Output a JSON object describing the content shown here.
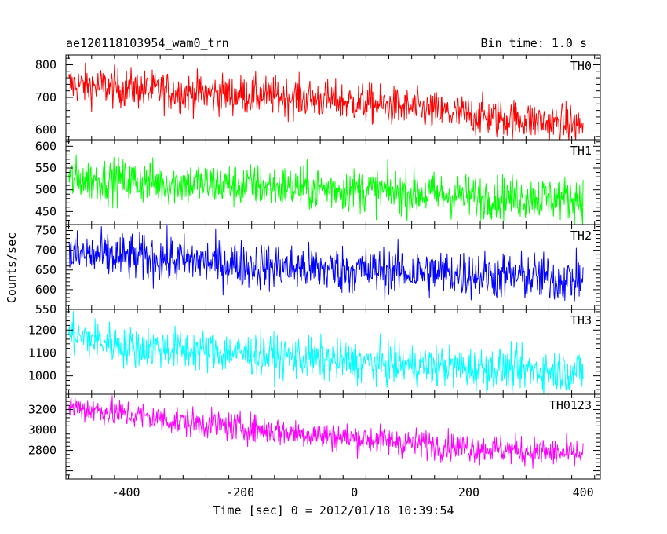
{
  "header": {
    "title": "ae120118103954_wam0_trn",
    "bin_time": "Bin time: 1.0 s"
  },
  "chart_data": {
    "type": "line",
    "title": "ae120118103954_wam0_trn",
    "subtitle": "Bin time: 1.0 s",
    "xlabel": "Time [sec] 0 = 2012/01/18 10:39:54",
    "ylabel": "Counts/sec",
    "xlim": [
      -505,
      430
    ],
    "x_ticks": [
      -400,
      -200,
      0,
      200,
      400
    ],
    "x_range_data": [
      -500,
      400
    ],
    "bin_time_s": 1.0,
    "panels": [
      {
        "name": "TH0",
        "color": "#ff0000",
        "ylim": [
          570,
          830
        ],
        "ticks": [
          600,
          700,
          800
        ],
        "trend_points": [
          [
            -500,
            740
          ],
          [
            -300,
            715
          ],
          [
            -100,
            700
          ],
          [
            0,
            685
          ],
          [
            100,
            665
          ],
          [
            200,
            645
          ],
          [
            300,
            630
          ],
          [
            400,
            615
          ]
        ],
        "noise_amplitude": 30
      },
      {
        "name": "TH1",
        "color": "#00ff00",
        "ylim": [
          420,
          615
        ],
        "ticks": [
          450,
          500,
          550,
          600
        ],
        "trend_points": [
          [
            -500,
            525
          ],
          [
            -300,
            515
          ],
          [
            -100,
            505
          ],
          [
            0,
            500
          ],
          [
            200,
            485
          ],
          [
            400,
            480
          ]
        ],
        "noise_amplitude": 25
      },
      {
        "name": "TH2",
        "color": "#0000ff",
        "ylim": [
          550,
          765
        ],
        "ticks": [
          550,
          600,
          650,
          700,
          750
        ],
        "trend_points": [
          [
            -500,
            690
          ],
          [
            -300,
            675
          ],
          [
            -100,
            655
          ],
          [
            0,
            650
          ],
          [
            200,
            640
          ],
          [
            400,
            625
          ]
        ],
        "noise_amplitude": 30
      },
      {
        "name": "TH3",
        "color": "#00ffff",
        "ylim": [
          920,
          1290
        ],
        "ticks": [
          1000,
          1100,
          1200
        ],
        "trend_points": [
          [
            -500,
            1180
          ],
          [
            -400,
            1130
          ],
          [
            -200,
            1100
          ],
          [
            0,
            1060
          ],
          [
            200,
            1035
          ],
          [
            400,
            1020
          ]
        ],
        "noise_amplitude": 45
      },
      {
        "name": "TH0123",
        "color": "#ff00ff",
        "ylim": [
          2520,
          3350
        ],
        "ticks": [
          2800,
          3000,
          3200
        ],
        "trend_points": [
          [
            -500,
            3230
          ],
          [
            -300,
            3080
          ],
          [
            -100,
            2970
          ],
          [
            0,
            2920
          ],
          [
            200,
            2830
          ],
          [
            400,
            2760
          ]
        ],
        "noise_amplitude": 70
      }
    ],
    "grid": false,
    "legend": "none"
  }
}
